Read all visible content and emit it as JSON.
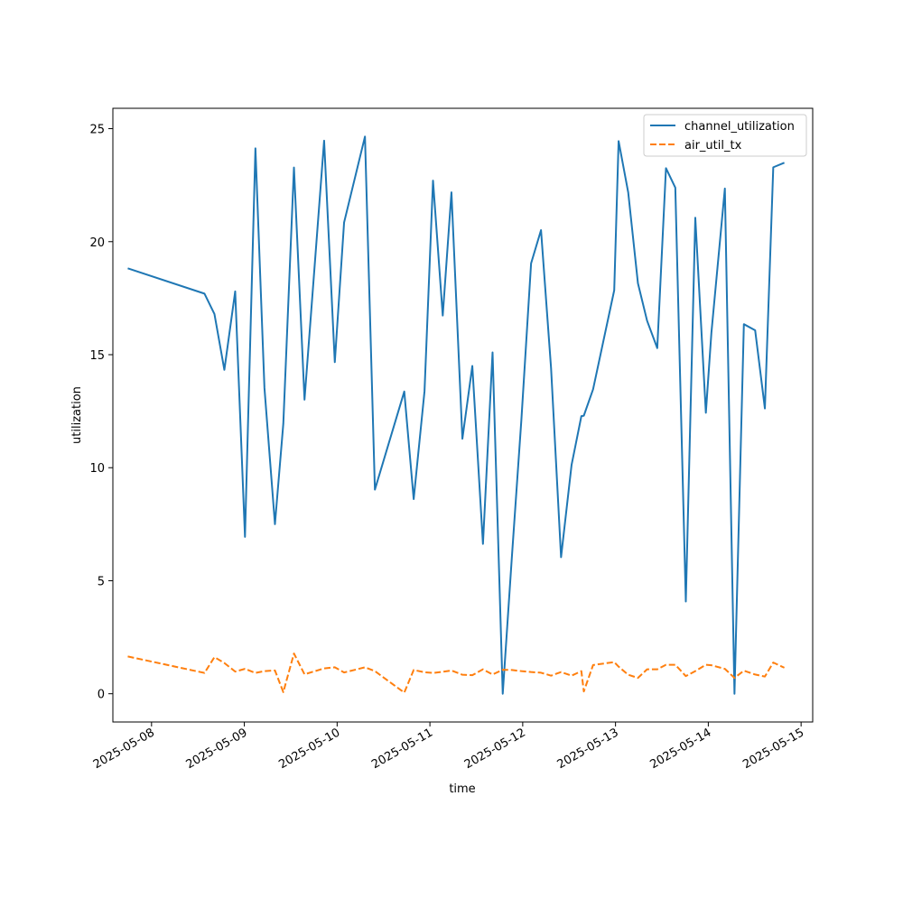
{
  "chart_data": {
    "type": "line",
    "xlabel": "time",
    "ylabel": "utilization",
    "xlim": [
      "2025-05-07 14:00",
      "2025-05-15 03:00"
    ],
    "ylim": [
      -1.25,
      25.9
    ],
    "x_ticks": [
      "2025-05-08",
      "2025-05-09",
      "2025-05-10",
      "2025-05-11",
      "2025-05-12",
      "2025-05-13",
      "2025-05-14",
      "2025-05-15"
    ],
    "y_ticks": [
      0,
      5,
      10,
      15,
      20,
      25
    ],
    "legend_position": "top-right",
    "grid": false,
    "series": [
      {
        "name": "channel_utilization",
        "color": "#1f77b4",
        "style": "solid",
        "points": [
          [
            "2025-05-07 17:51",
            18.82
          ],
          [
            "2025-05-08 13:42",
            17.7
          ],
          [
            "2025-05-08 16:16",
            16.8
          ],
          [
            "2025-05-08 18:50",
            14.33
          ],
          [
            "2025-05-08 21:38",
            17.8
          ],
          [
            "2025-05-09 00:10",
            6.94
          ],
          [
            "2025-05-09 02:52",
            24.13
          ],
          [
            "2025-05-09 05:12",
            13.53
          ],
          [
            "2025-05-09 07:55",
            7.5
          ],
          [
            "2025-05-09 10:05",
            11.95
          ],
          [
            "2025-05-09 12:50",
            23.28
          ],
          [
            "2025-05-09 15:34",
            13.01
          ],
          [
            "2025-05-09 20:38",
            24.47
          ],
          [
            "2025-05-09 23:24",
            14.67
          ],
          [
            "2025-05-10 01:48",
            20.85
          ],
          [
            "2025-05-10 07:12",
            24.65
          ],
          [
            "2025-05-10 09:46",
            9.03
          ],
          [
            "2025-05-10 17:22",
            13.37
          ],
          [
            "2025-05-10 19:48",
            8.61
          ],
          [
            "2025-05-10 22:36",
            13.38
          ],
          [
            "2025-05-11 00:48",
            22.7
          ],
          [
            "2025-05-11 03:19",
            16.73
          ],
          [
            "2025-05-11 05:34",
            22.18
          ],
          [
            "2025-05-11 08:24",
            11.28
          ],
          [
            "2025-05-11 10:58",
            14.5
          ],
          [
            "2025-05-11 13:43",
            6.63
          ],
          [
            "2025-05-11 16:12",
            15.1
          ],
          [
            "2025-05-11 18:50",
            0.0
          ],
          [
            "2025-05-11 21:12",
            6.06
          ],
          [
            "2025-05-11 23:40",
            12.15
          ],
          [
            "2025-05-12 02:10",
            19.04
          ],
          [
            "2025-05-12 04:44",
            20.51
          ],
          [
            "2025-05-12 07:20",
            14.4
          ],
          [
            "2025-05-12 09:55",
            6.04
          ],
          [
            "2025-05-12 12:38",
            10.12
          ],
          [
            "2025-05-12 15:10",
            12.28
          ],
          [
            "2025-05-12 15:48",
            12.3
          ],
          [
            "2025-05-12 18:12",
            13.47
          ],
          [
            "2025-05-12 23:40",
            17.85
          ],
          [
            "2025-05-13 00:48",
            24.45
          ],
          [
            "2025-05-13 03:17",
            22.18
          ],
          [
            "2025-05-13 05:48",
            18.16
          ],
          [
            "2025-05-13 08:10",
            16.5
          ],
          [
            "2025-05-13 10:48",
            15.29
          ],
          [
            "2025-05-13 13:03",
            23.25
          ],
          [
            "2025-05-13 15:28",
            22.39
          ],
          [
            "2025-05-13 18:11",
            4.08
          ],
          [
            "2025-05-13 20:38",
            21.06
          ],
          [
            "2025-05-13 23:22",
            12.43
          ],
          [
            "2025-05-14 00:48",
            15.97
          ],
          [
            "2025-05-14 04:17",
            22.35
          ],
          [
            "2025-05-14 06:46",
            0.0
          ],
          [
            "2025-05-14 09:12",
            16.35
          ],
          [
            "2025-05-14 12:07",
            16.08
          ],
          [
            "2025-05-14 14:38",
            12.62
          ],
          [
            "2025-05-14 16:48",
            23.29
          ],
          [
            "2025-05-14 19:40",
            23.49
          ]
        ]
      },
      {
        "name": "air_util_tx",
        "color": "#ff7f0e",
        "style": "dashed",
        "points": [
          [
            "2025-05-07 17:51",
            1.65
          ],
          [
            "2025-05-08 13:42",
            0.92
          ],
          [
            "2025-05-08 16:16",
            1.62
          ],
          [
            "2025-05-08 18:50",
            1.36
          ],
          [
            "2025-05-08 21:38",
            0.98
          ],
          [
            "2025-05-09 00:10",
            1.1
          ],
          [
            "2025-05-09 02:52",
            0.92
          ],
          [
            "2025-05-09 05:12",
            1.0
          ],
          [
            "2025-05-09 07:55",
            1.03
          ],
          [
            "2025-05-09 10:05",
            0.07
          ],
          [
            "2025-05-09 12:50",
            1.78
          ],
          [
            "2025-05-09 15:34",
            0.86
          ],
          [
            "2025-05-09 20:38",
            1.12
          ],
          [
            "2025-05-09 23:24",
            1.17
          ],
          [
            "2025-05-10 01:48",
            0.94
          ],
          [
            "2025-05-10 07:12",
            1.17
          ],
          [
            "2025-05-10 09:46",
            1.0
          ],
          [
            "2025-05-10 17:22",
            0.05
          ],
          [
            "2025-05-10 19:48",
            1.05
          ],
          [
            "2025-05-10 22:36",
            0.95
          ],
          [
            "2025-05-11 00:48",
            0.92
          ],
          [
            "2025-05-11 03:19",
            0.97
          ],
          [
            "2025-05-11 05:34",
            1.03
          ],
          [
            "2025-05-11 08:24",
            0.84
          ],
          [
            "2025-05-11 10:58",
            0.82
          ],
          [
            "2025-05-11 13:43",
            1.08
          ],
          [
            "2025-05-11 16:12",
            0.85
          ],
          [
            "2025-05-11 18:50",
            1.06
          ],
          [
            "2025-05-11 21:12",
            1.05
          ],
          [
            "2025-05-11 23:40",
            1.0
          ],
          [
            "2025-05-12 02:10",
            0.96
          ],
          [
            "2025-05-12 04:44",
            0.93
          ],
          [
            "2025-05-12 07:20",
            0.8
          ],
          [
            "2025-05-12 09:55",
            0.96
          ],
          [
            "2025-05-12 12:38",
            0.8
          ],
          [
            "2025-05-12 15:10",
            1.0
          ],
          [
            "2025-05-12 15:48",
            0.1
          ],
          [
            "2025-05-12 18:12",
            1.27
          ],
          [
            "2025-05-12 23:40",
            1.4
          ],
          [
            "2025-05-13 00:48",
            1.2
          ],
          [
            "2025-05-13 03:17",
            0.84
          ],
          [
            "2025-05-13 05:48",
            0.7
          ],
          [
            "2025-05-13 08:10",
            1.08
          ],
          [
            "2025-05-13 10:48",
            1.08
          ],
          [
            "2025-05-13 13:03",
            1.28
          ],
          [
            "2025-05-13 15:28",
            1.28
          ],
          [
            "2025-05-13 18:11",
            0.78
          ],
          [
            "2025-05-13 20:38",
            1.0
          ],
          [
            "2025-05-13 23:22",
            1.28
          ],
          [
            "2025-05-14 00:48",
            1.26
          ],
          [
            "2025-05-14 04:17",
            1.1
          ],
          [
            "2025-05-14 06:46",
            0.7
          ],
          [
            "2025-05-14 09:12",
            1.02
          ],
          [
            "2025-05-14 12:07",
            0.85
          ],
          [
            "2025-05-14 14:38",
            0.76
          ],
          [
            "2025-05-14 16:48",
            1.38
          ],
          [
            "2025-05-14 19:40",
            1.15
          ]
        ]
      }
    ]
  }
}
